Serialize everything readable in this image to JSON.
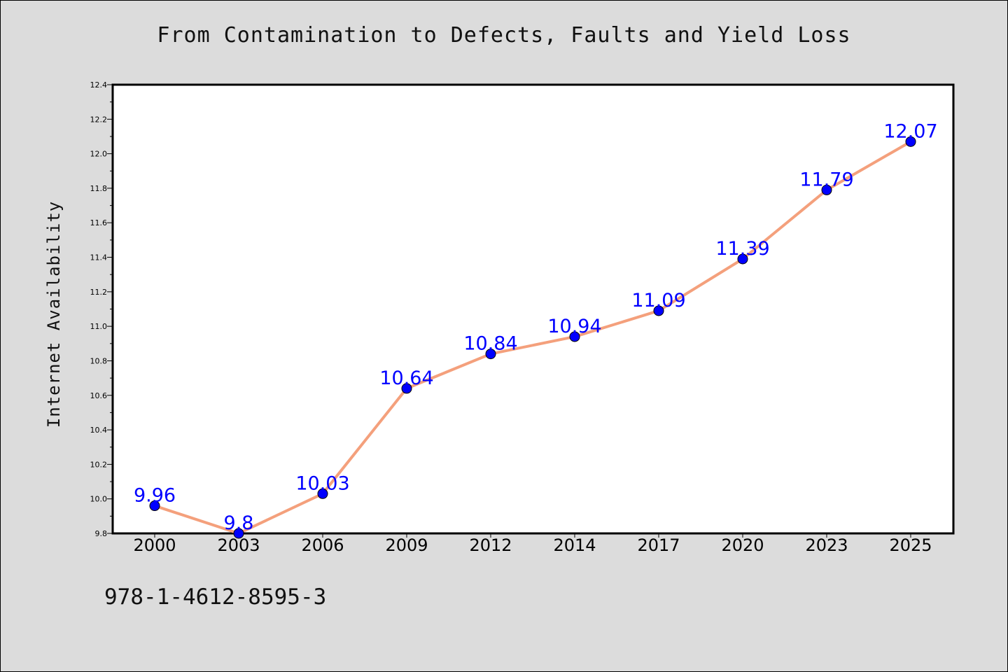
{
  "chart_data": {
    "type": "line",
    "title": "From Contamination to Defects, Faults and Yield Loss",
    "xlabel": "",
    "ylabel": "Internet Availability",
    "categories": [
      "2000",
      "2003",
      "2006",
      "2009",
      "2012",
      "2014",
      "2017",
      "2020",
      "2023",
      "2025"
    ],
    "series": [
      {
        "values": [
          9.96,
          9.8,
          10.03,
          10.64,
          10.84,
          10.94,
          11.09,
          11.39,
          11.79,
          12.07
        ],
        "labels": [
          "9.96",
          "9.8",
          "10.03",
          "10.64",
          "10.84",
          "10.94",
          "11.09",
          "11.39",
          "11.79",
          "12.07"
        ],
        "line_color": "#f4a07c",
        "marker_color": "#0000ff"
      }
    ],
    "ylim": [
      9.8,
      12.4
    ],
    "y_ticks": [
      "9.8",
      "10.0",
      "10.2",
      "10.4",
      "10.6",
      "10.8",
      "11.0",
      "11.2",
      "11.4",
      "11.6",
      "11.8",
      "12.0",
      "12.2",
      "12.4"
    ],
    "grid": false,
    "legend": "none"
  },
  "footer": {
    "code": "978-1-4612-8595-3"
  }
}
